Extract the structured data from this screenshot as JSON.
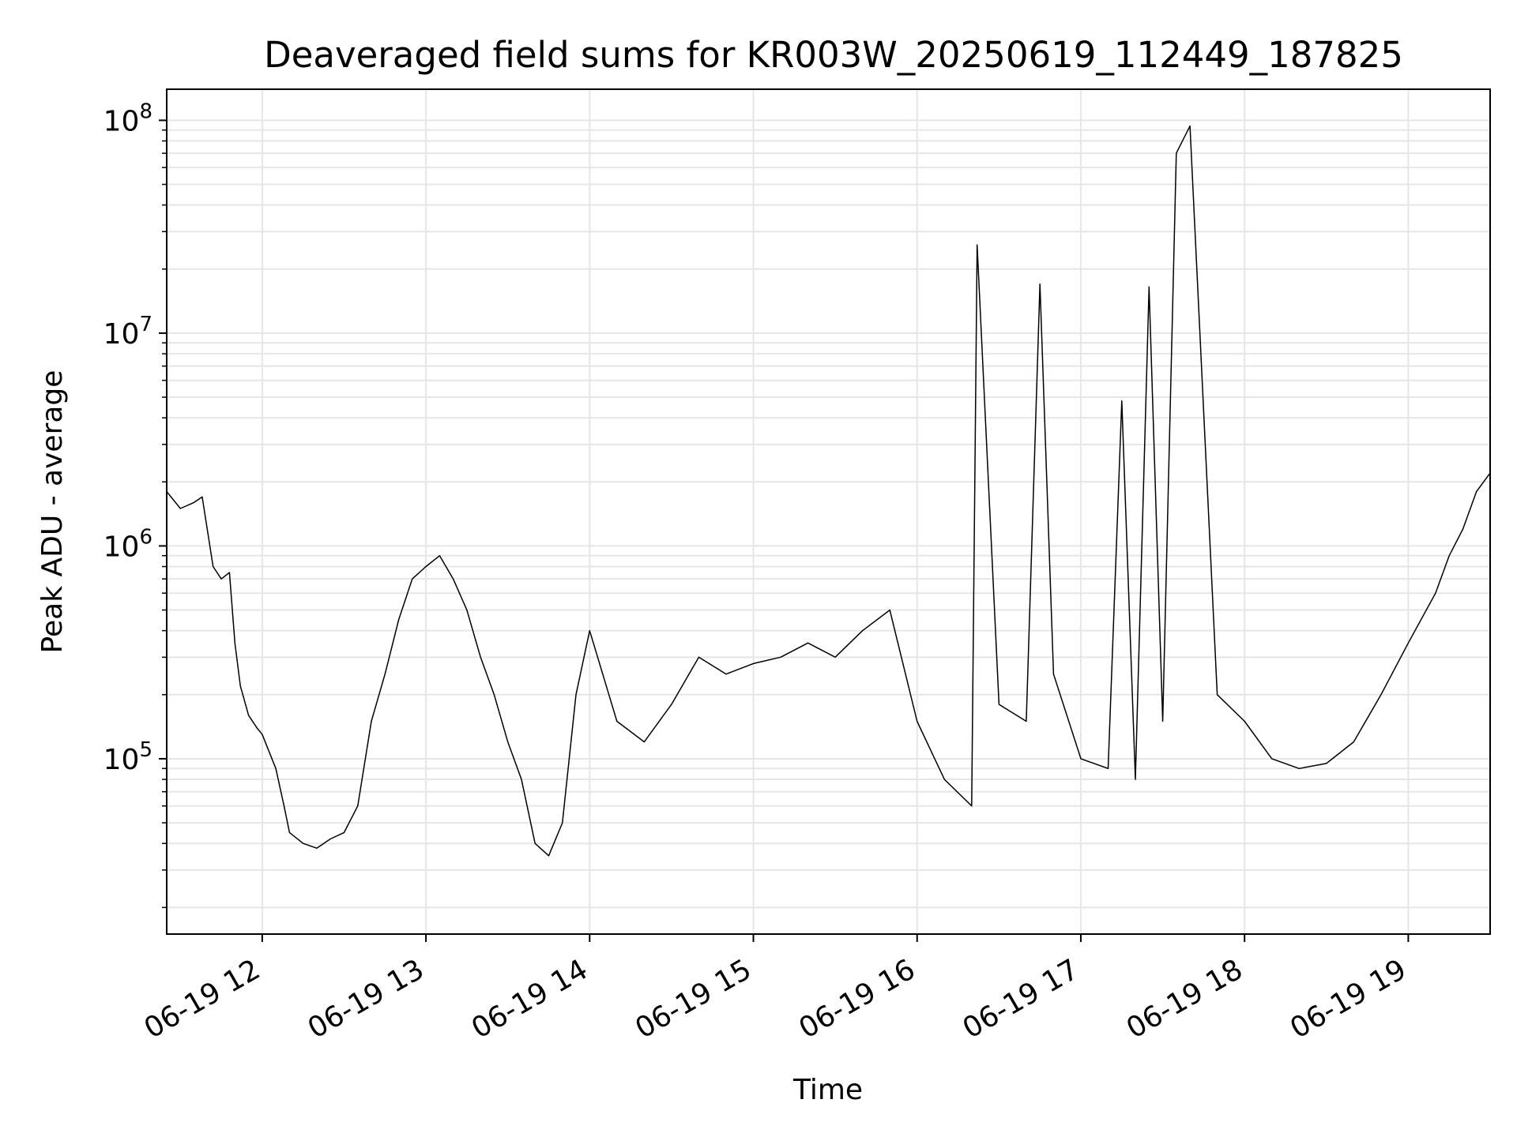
{
  "chart_data": {
    "type": "line",
    "title": "Deaveraged field sums for KR003W_20250619_112449_187825",
    "xlabel": "Time",
    "ylabel": "Peak ADU - average",
    "yscale": "log",
    "grid": true,
    "line_color": "#000000",
    "x_range": [
      "06-19 11:25",
      "06-19 19:30"
    ],
    "ylim": [
      15000,
      140000000
    ],
    "x_ticks": [
      "06-19 12",
      "06-19 13",
      "06-19 14",
      "06-19 15",
      "06-19 16",
      "06-19 17",
      "06-19 18",
      "06-19 19"
    ],
    "x_tick_times": [
      "06-19 12:00",
      "06-19 13:00",
      "06-19 14:00",
      "06-19 15:00",
      "06-19 16:00",
      "06-19 17:00",
      "06-19 18:00",
      "06-19 19:00"
    ],
    "y_ticks": [
      {
        "value": 100000,
        "base": "10",
        "exp": "5"
      },
      {
        "value": 1000000,
        "base": "10",
        "exp": "6"
      },
      {
        "value": 10000000,
        "base": "10",
        "exp": "7"
      },
      {
        "value": 100000000,
        "base": "10",
        "exp": "8"
      }
    ],
    "series": [
      {
        "x": [
          "06-19 11:25",
          "06-19 11:30",
          "06-19 11:35",
          "06-19 11:38",
          "06-19 11:42",
          "06-19 11:45",
          "06-19 11:48",
          "06-19 11:50",
          "06-19 11:52",
          "06-19 11:55",
          "06-19 11:58",
          "06-19 12:00",
          "06-19 12:05",
          "06-19 12:08",
          "06-19 12:10",
          "06-19 12:15",
          "06-19 12:20",
          "06-19 12:25",
          "06-19 12:30",
          "06-19 12:35",
          "06-19 12:40",
          "06-19 12:45",
          "06-19 12:50",
          "06-19 12:55",
          "06-19 13:00",
          "06-19 13:05",
          "06-19 13:10",
          "06-19 13:15",
          "06-19 13:20",
          "06-19 13:25",
          "06-19 13:30",
          "06-19 13:35",
          "06-19 13:40",
          "06-19 13:45",
          "06-19 13:50",
          "06-19 13:55",
          "06-19 14:00",
          "06-19 14:10",
          "06-19 14:20",
          "06-19 14:30",
          "06-19 14:40",
          "06-19 14:50",
          "06-19 15:00",
          "06-19 15:10",
          "06-19 15:20",
          "06-19 15:30",
          "06-19 15:40",
          "06-19 15:50",
          "06-19 16:00",
          "06-19 16:10",
          "06-19 16:20",
          "06-19 16:22",
          "06-19 16:30",
          "06-19 16:40",
          "06-19 16:45",
          "06-19 16:50",
          "06-19 17:00",
          "06-19 17:10",
          "06-19 17:15",
          "06-19 17:20",
          "06-19 17:25",
          "06-19 17:30",
          "06-19 17:35",
          "06-19 17:40",
          "06-19 17:50",
          "06-19 18:00",
          "06-19 18:10",
          "06-19 18:20",
          "06-19 18:30",
          "06-19 18:40",
          "06-19 18:50",
          "06-19 19:00",
          "06-19 19:10",
          "06-19 19:15",
          "06-19 19:20",
          "06-19 19:25",
          "06-19 19:30"
        ],
        "y": [
          1800000,
          1500000,
          1600000,
          1700000,
          800000,
          700000,
          750000,
          350000,
          220000,
          160000,
          140000,
          130000,
          90000,
          60000,
          45000,
          40000,
          38000,
          42000,
          45000,
          60000,
          150000,
          250000,
          450000,
          700000,
          800000,
          900000,
          700000,
          500000,
          300000,
          200000,
          120000,
          80000,
          40000,
          35000,
          50000,
          200000,
          400000,
          150000,
          120000,
          180000,
          300000,
          250000,
          280000,
          300000,
          350000,
          300000,
          400000,
          500000,
          150000,
          80000,
          60000,
          26000000,
          180000,
          150000,
          17000000,
          250000,
          100000,
          90000,
          4800000,
          80000,
          16500000,
          150000,
          70000000,
          94000000,
          200000,
          150000,
          100000,
          90000,
          95000,
          120000,
          200000,
          350000,
          600000,
          900000,
          1200000,
          1800000,
          2200000
        ]
      }
    ]
  }
}
